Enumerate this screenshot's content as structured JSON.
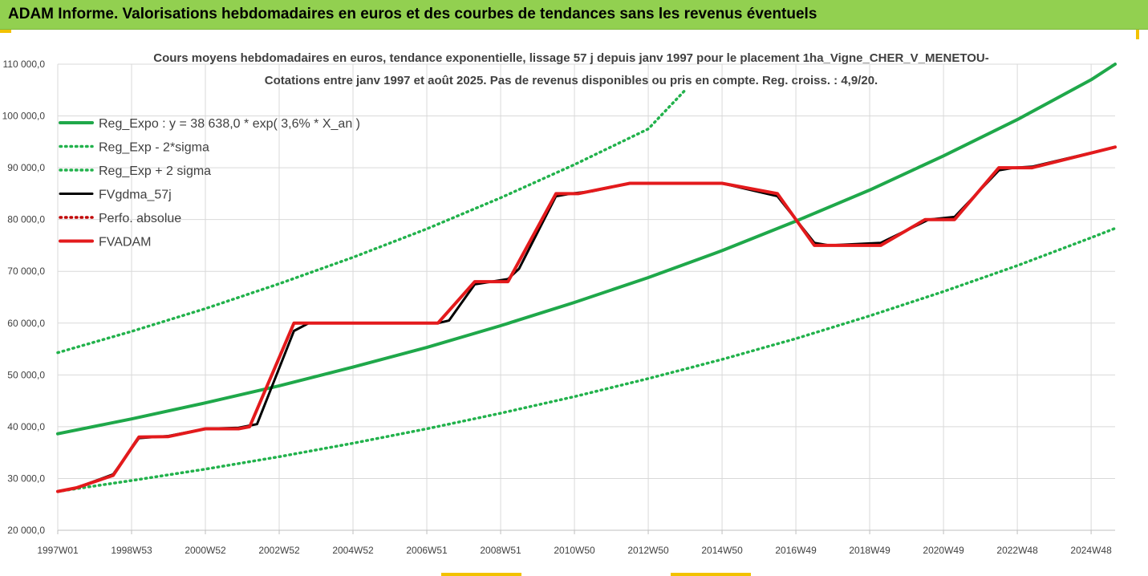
{
  "banner": {
    "title": "ADAM Informe. Valorisations hebdomadaires en euros et des courbes de tendances sans les revenus éventuels"
  },
  "colors": {
    "banner_bg": "#92d050",
    "trend_green": "#1fa84a",
    "band_green": "#22b24c",
    "fvgdma_black": "#000000",
    "fvadam_red": "#e31a1c",
    "perfo_red": "#c00000",
    "grid": "#d9d9d9"
  },
  "chart_data": {
    "type": "line",
    "title_line1": "Cours moyens hebdomadaires en euros, tendance exponentielle, lissage 57 j depuis janv 1997 pour le placement 1ha_Vigne_CHER_V_MENETOU-",
    "title_line2": "Cotations entre janv 1997 et août 2025. Pas de revenus disponibles ou pris en compte. Reg. croiss. : 4,9/20.",
    "xlabel": "",
    "ylabel": "",
    "x_range_years": [
      1997.0,
      2025.65
    ],
    "ylim": [
      20000,
      110000
    ],
    "y_ticks": [
      20000,
      30000,
      40000,
      50000,
      60000,
      70000,
      80000,
      90000,
      100000,
      110000
    ],
    "y_tick_labels": [
      "20 000,0",
      "30 000,0",
      "40 000,0",
      "50 000,0",
      "60 000,0",
      "70 000,0",
      "80 000,0",
      "90 000,0",
      "100 000,0",
      "110 000,0"
    ],
    "x_tick_labels": [
      {
        "label": "1997W01",
        "year": 1997.0
      },
      {
        "label": "1998W53",
        "year": 1999.0
      },
      {
        "label": "2000W52",
        "year": 2001.0
      },
      {
        "label": "2002W52",
        "year": 2003.0
      },
      {
        "label": "2004W52",
        "year": 2005.0
      },
      {
        "label": "2006W51",
        "year": 2007.0
      },
      {
        "label": "2008W51",
        "year": 2009.0
      },
      {
        "label": "2010W50",
        "year": 2011.0
      },
      {
        "label": "2012W50",
        "year": 2013.0
      },
      {
        "label": "2014W50",
        "year": 2015.0
      },
      {
        "label": "2016W49",
        "year": 2017.0
      },
      {
        "label": "2018W49",
        "year": 2019.0
      },
      {
        "label": "2020W49",
        "year": 2021.0
      },
      {
        "label": "2022W48",
        "year": 2023.0
      },
      {
        "label": "2024W48",
        "year": 2025.0
      }
    ],
    "grid": true,
    "legend_position": "top-left",
    "series": [
      {
        "name": "Reg_Expo : y = 38 638,0 * exp( 3,6% *  X_an )",
        "style": "solid-thick",
        "color": "#1fa84a",
        "x": [
          1997.0,
          1999.0,
          2001.0,
          2003.0,
          2005.0,
          2007.0,
          2009.0,
          2011.0,
          2013.0,
          2015.0,
          2017.0,
          2019.0,
          2021.0,
          2023.0,
          2025.0,
          2025.65
        ],
        "y": [
          38638,
          41500,
          44600,
          47900,
          51500,
          55300,
          59500,
          64000,
          68800,
          74000,
          79700,
          85700,
          92300,
          99300,
          107000,
          110000
        ]
      },
      {
        "name": "Reg_Exp - 2*sigma",
        "style": "dotted",
        "color": "#22b24c",
        "x": [
          1997.0,
          1999.0,
          2001.0,
          2003.0,
          2005.0,
          2007.0,
          2009.0,
          2011.0,
          2013.0,
          2015.0,
          2017.0,
          2019.0,
          2021.0,
          2023.0,
          2025.0,
          2025.65
        ],
        "y": [
          27500,
          29600,
          31800,
          34200,
          36800,
          39600,
          42600,
          45800,
          49300,
          53000,
          57000,
          61400,
          66100,
          71100,
          76500,
          78300
        ]
      },
      {
        "name": "Reg_Exp + 2 sigma",
        "style": "dotted",
        "color": "#22b24c",
        "x": [
          1997.0,
          1999.0,
          2001.0,
          2003.0,
          2005.0,
          2007.0,
          2009.0,
          2011.0,
          2013.0,
          2014.0
        ],
        "y": [
          54300,
          58400,
          62800,
          67600,
          72700,
          78200,
          84200,
          90600,
          97500,
          105000
        ]
      },
      {
        "name": "FVgdma_57j",
        "style": "solid",
        "color": "#000000",
        "x": [
          1997.0,
          1997.5,
          1998.5,
          1999.2,
          2000.0,
          2001.0,
          2001.9,
          2002.4,
          2003.4,
          2003.8,
          2007.3,
          2007.6,
          2008.3,
          2009.2,
          2009.5,
          2010.5,
          2010.9,
          2011.5,
          2012.5,
          2015.0,
          2016.5,
          2017.5,
          2017.9,
          2019.3,
          2020.6,
          2021.3,
          2022.5,
          2022.9,
          2023.4,
          2025.65
        ],
        "y": [
          27500,
          28200,
          30800,
          37800,
          38200,
          39600,
          39800,
          40500,
          58500,
          60000,
          60000,
          60500,
          67500,
          68500,
          70500,
          84500,
          85000,
          85500,
          87000,
          87000,
          84500,
          75500,
          75000,
          75500,
          80000,
          80500,
          89500,
          90000,
          90200,
          94000
        ]
      },
      {
        "name": "Perfo. absolue",
        "style": "dotted",
        "color": "#c00000",
        "x": [],
        "y": []
      },
      {
        "name": "FVADAM",
        "style": "solid-thick",
        "color": "#e31a1c",
        "x": [
          1997.0,
          1997.5,
          1998.5,
          1999.2,
          2000.0,
          2001.0,
          2001.9,
          2002.2,
          2003.4,
          2007.3,
          2008.3,
          2009.2,
          2010.5,
          2011.1,
          2012.5,
          2015.0,
          2016.5,
          2017.5,
          2019.3,
          2020.5,
          2021.3,
          2022.5,
          2023.4,
          2025.65
        ],
        "y": [
          27500,
          28200,
          30600,
          38000,
          38100,
          39600,
          39600,
          40000,
          60000,
          60000,
          68000,
          68000,
          85000,
          85000,
          87000,
          87000,
          85000,
          75000,
          75000,
          80000,
          80000,
          90000,
          90000,
          94000
        ]
      }
    ]
  }
}
